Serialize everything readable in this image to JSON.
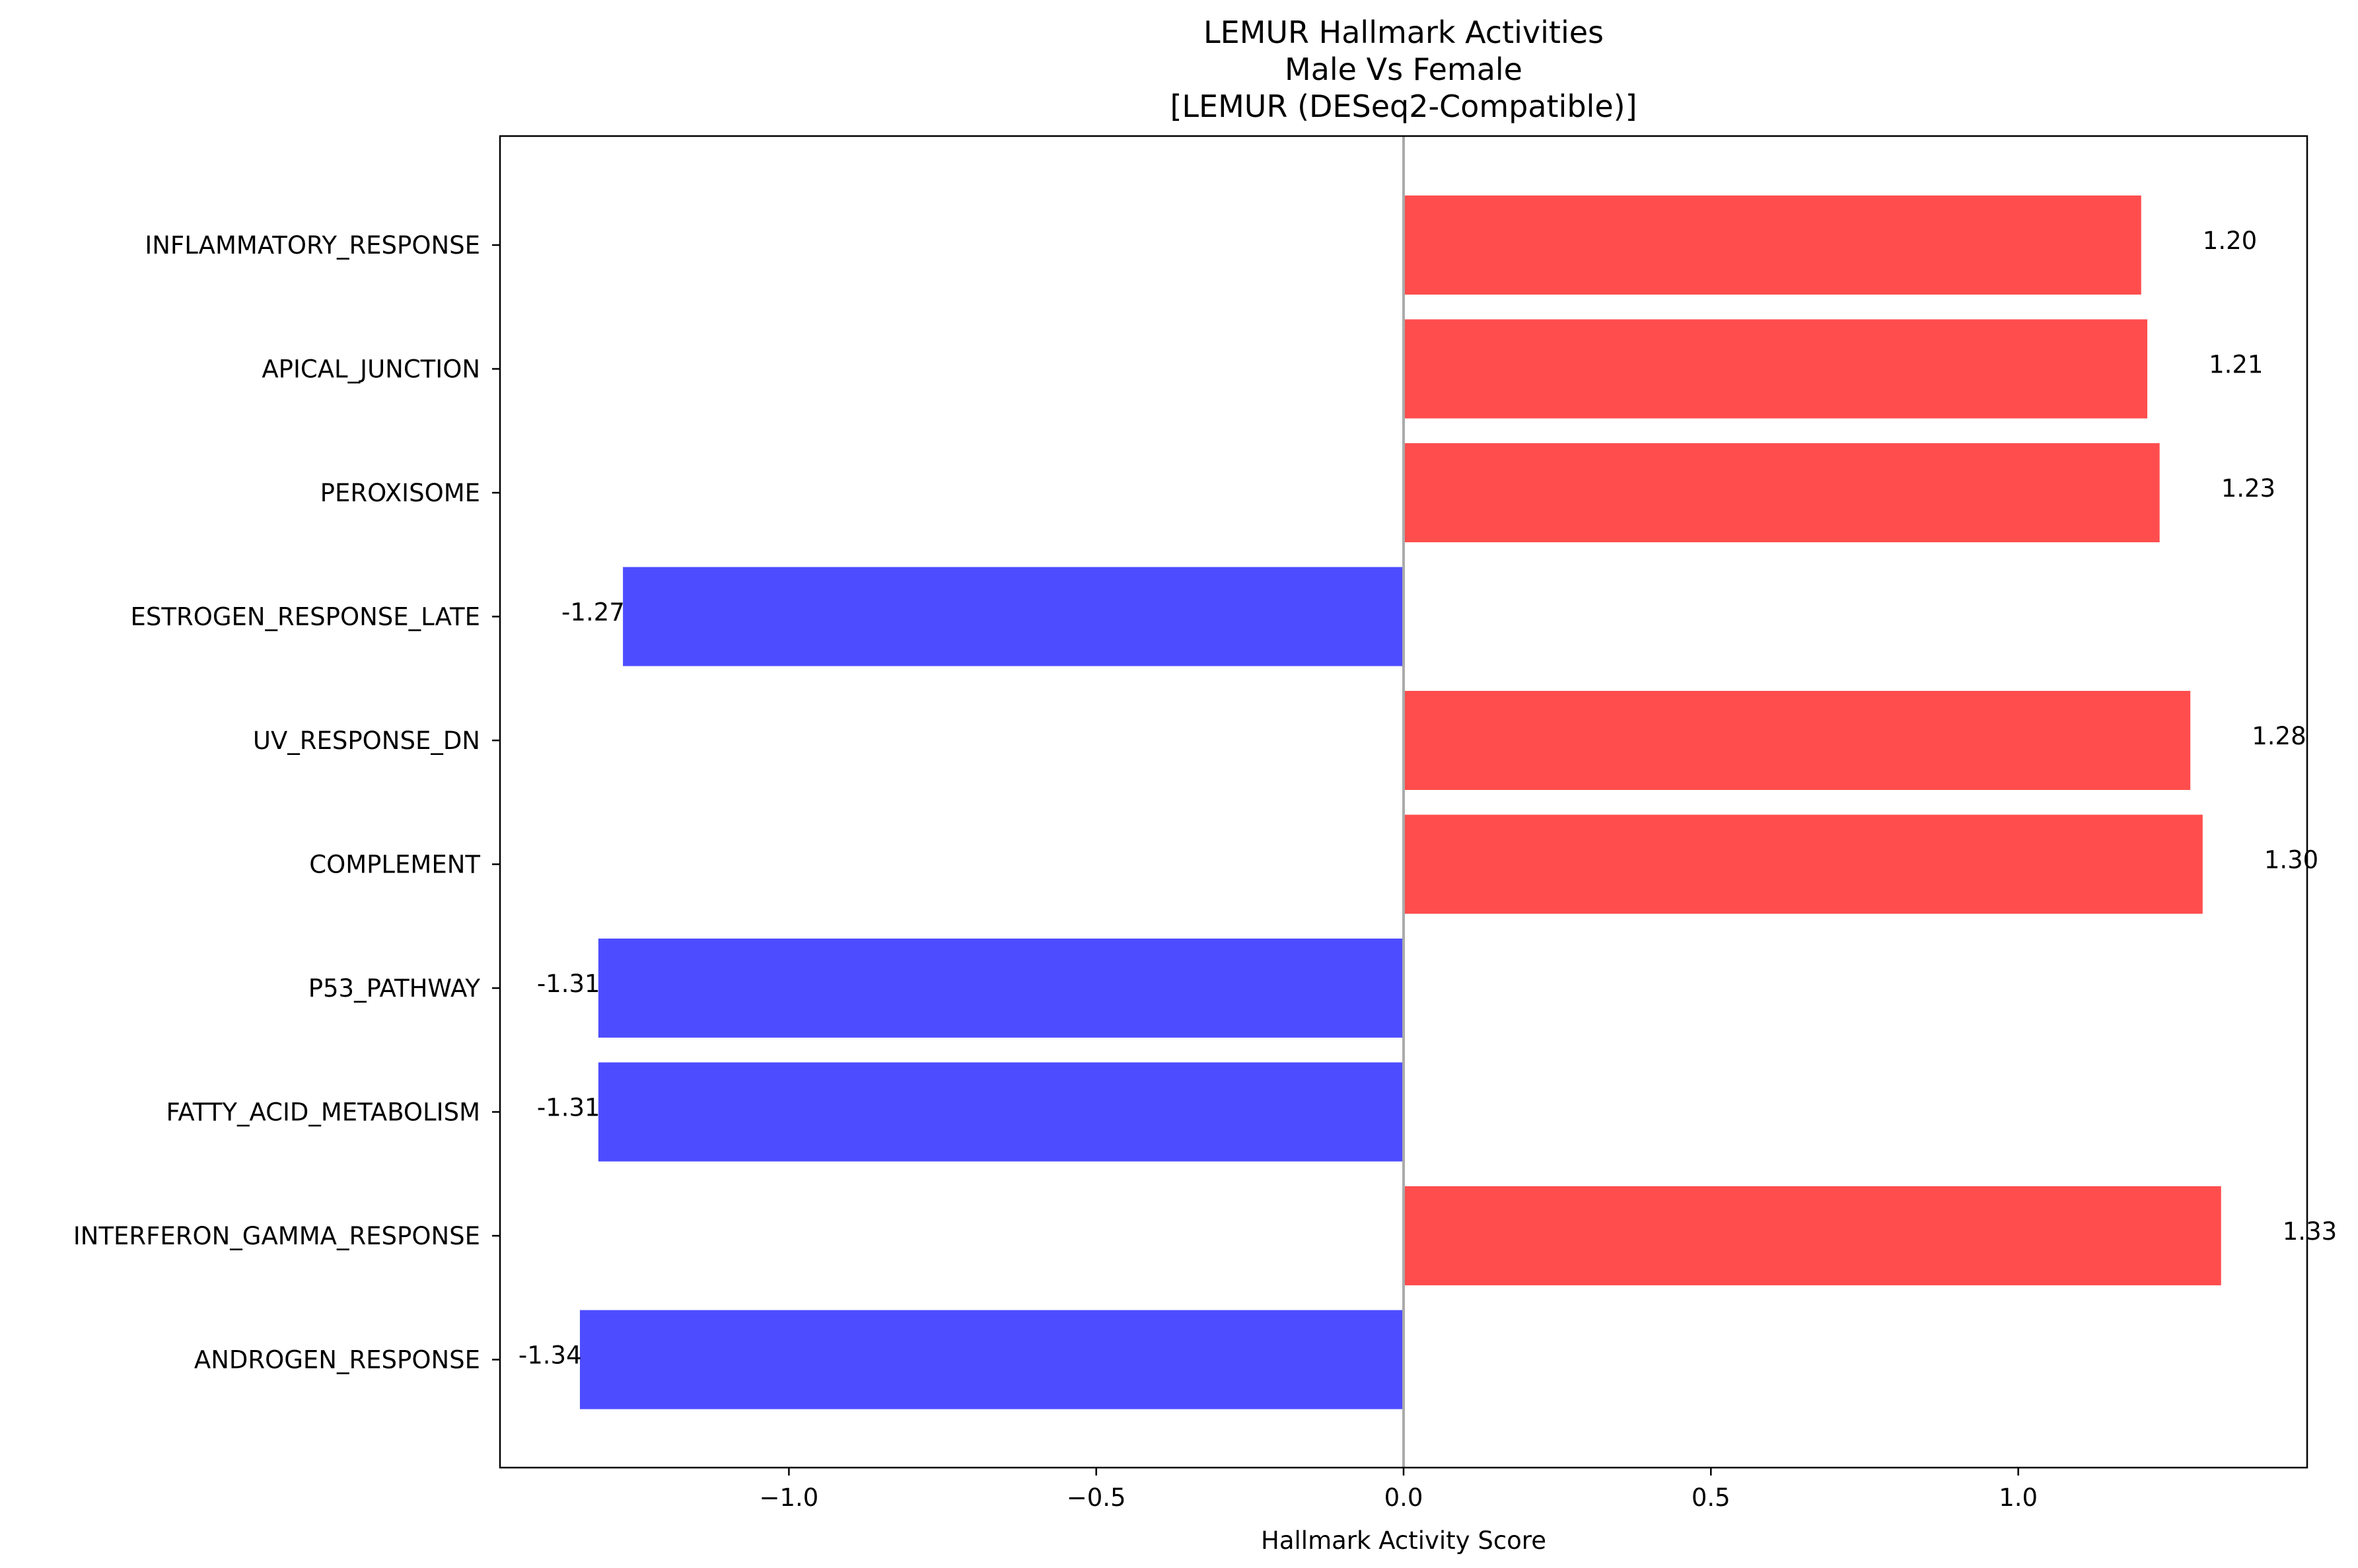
{
  "chart_data": {
    "type": "bar",
    "orientation": "horizontal",
    "title": [
      "LEMUR Hallmark Activities",
      "Male Vs Female",
      "[LEMUR (DESeq2-Compatible)]"
    ],
    "xlabel": "Hallmark Activity Score",
    "ylabel": "",
    "categories": [
      "INFLAMMATORY_RESPONSE",
      "APICAL_JUNCTION",
      "PEROXISOME",
      "ESTROGEN_RESPONSE_LATE",
      "UV_RESPONSE_DN",
      "COMPLEMENT",
      "P53_PATHWAY",
      "FATTY_ACID_METABOLISM",
      "INTERFERON_GAMMA_RESPONSE",
      "ANDROGEN_RESPONSE"
    ],
    "values": [
      1.2,
      1.21,
      1.23,
      -1.27,
      1.28,
      1.3,
      -1.31,
      -1.31,
      1.33,
      -1.34
    ],
    "value_labels": [
      "1.20",
      "1.21",
      "1.23",
      "-1.27",
      "1.28",
      "1.30",
      "-1.31",
      "-1.31",
      "1.33",
      "-1.34"
    ],
    "xlim": [
      -1.47,
      1.47
    ],
    "xticks": [
      -1.0,
      -0.5,
      0.0,
      0.5,
      1.0
    ],
    "xtick_labels": [
      "−1.0",
      "−0.5",
      "0.0",
      "0.5",
      "1.0"
    ],
    "colors": {
      "positive": "#ff4d4d",
      "negative": "#4d4dff",
      "zero_line": "#aaaaaa",
      "axes": "#000000"
    },
    "grid": false,
    "legend": "none"
  }
}
